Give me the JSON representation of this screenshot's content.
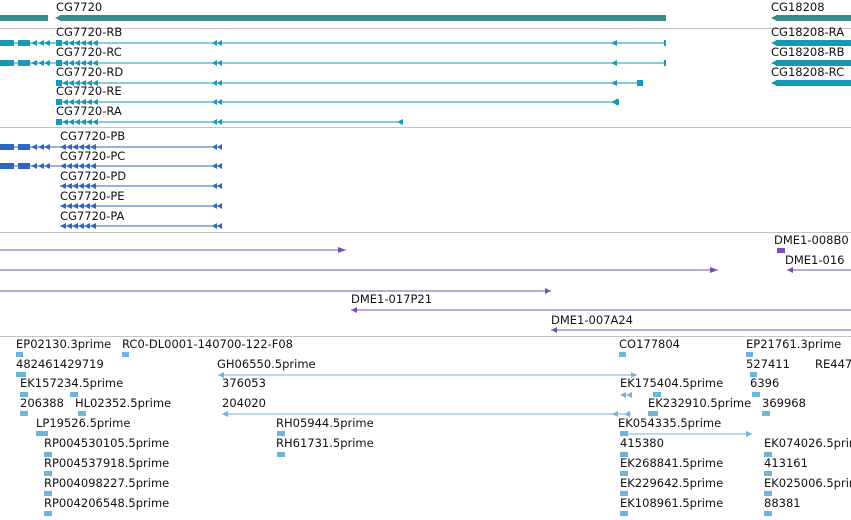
{
  "colors": {
    "gene": "#3a8b8b",
    "transcript": "#1799b5",
    "protein": "#2e67c2",
    "clone": "#7a4fae",
    "est": "#6fb5d9",
    "separator": "#c4c4c4"
  },
  "icons": [
    "left-arrow-icon",
    "right-arrow-icon"
  ],
  "genes": {
    "gene_a": "CG7720",
    "gene_b": "CG18208"
  },
  "transcripts": {
    "a": [
      "CG7720-RB",
      "CG7720-RC",
      "CG7720-RD",
      "CG7720-RE",
      "CG7720-RA"
    ],
    "b": [
      "CG18208-RA",
      "CG18208-RB",
      "CG18208-RC"
    ]
  },
  "proteins": [
    "CG7720-PB",
    "CG7720-PC",
    "CG7720-PD",
    "CG7720-PE",
    "CG7720-PA"
  ],
  "clones": [
    "DME1-008B0",
    "DME1-016",
    "DME1-017P21",
    "DME1-007A24"
  ],
  "ests": [
    "EP02130.3prime",
    "RC0-DL0001-140700-122-F08",
    "CO177804",
    "EP21761.3prime",
    "482461429719",
    "527411",
    "RE447",
    "EK157234.5prime",
    "GH06550.5prime",
    "376053",
    "EK175404.5prime",
    "6396",
    "206388",
    "HL02352.5prime",
    "204020",
    "EK232910.5prime",
    "369968",
    "LP19526.5prime",
    "RH05944.5prime",
    "EK054335.5prime",
    "RP004530105.5prime",
    "RH61731.5prime",
    "415380",
    "EK074026.5prime",
    "RP004537918.5prime",
    "EK268841.5prime",
    "413161",
    "RP004098227.5prime",
    "EK229642.5prime",
    "EK025006.5prime",
    "RP004206548.5prime",
    "EK108961.5prime",
    "88381"
  ]
}
